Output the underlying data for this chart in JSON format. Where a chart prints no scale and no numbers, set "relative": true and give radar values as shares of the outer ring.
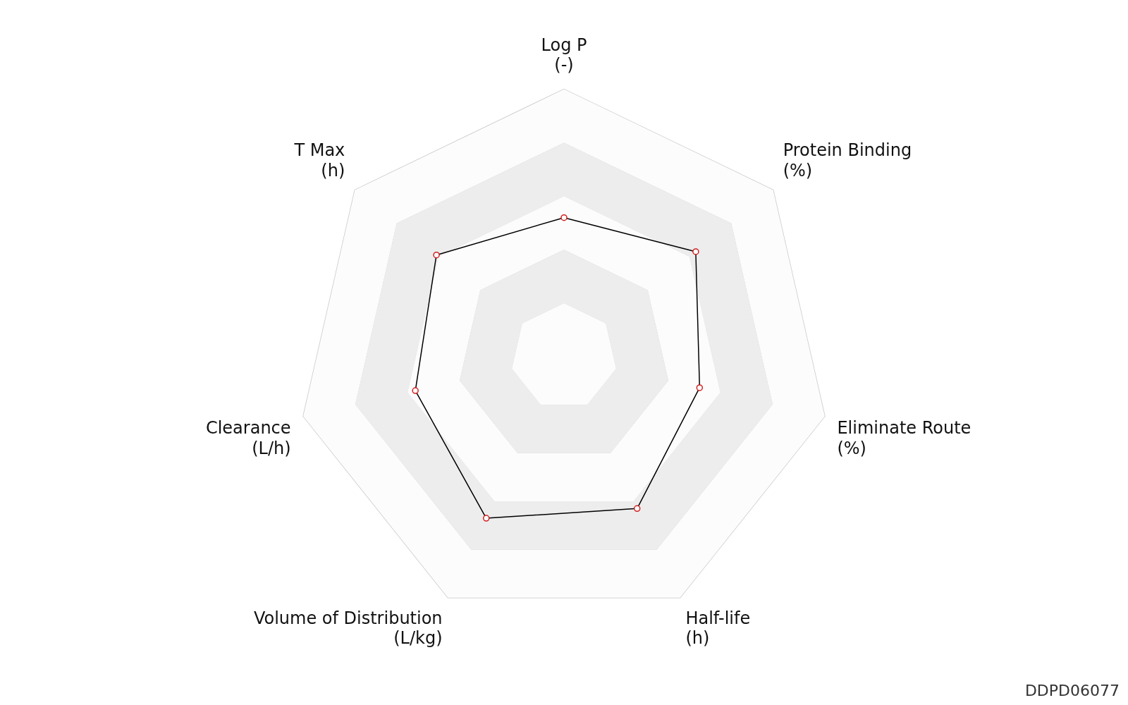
{
  "chart_data": {
    "type": "radar",
    "relative": true,
    "categories": [
      "Log P\n(-)",
      "Protein Binding\n(%)",
      "Eliminate Route\n(%)",
      "Half-life\n(h)",
      "Volume of Distribution\n(L/kg)",
      "Clearance\n(L/h)",
      "T Max\n(h)"
    ],
    "series": [
      {
        "color": "#000000",
        "values": [
          0.52,
          0.63,
          0.52,
          0.63,
          0.67,
          0.57,
          0.61
        ]
      }
    ],
    "marker": "circle",
    "legend": false,
    "annotations": [
      "DDPD06077"
    ]
  }
}
